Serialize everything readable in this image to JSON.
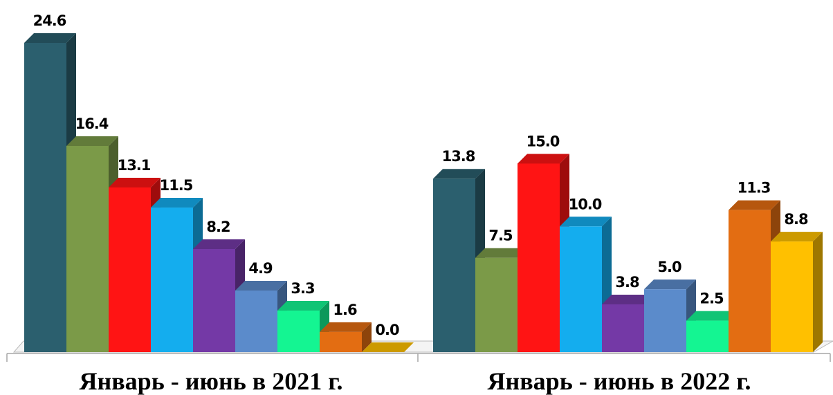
{
  "chart_data": {
    "type": "bar",
    "style": "3d-clustered",
    "categories": [
      "Январь - июнь в 2021 г.",
      "Январь - июнь в 2022 г."
    ],
    "series_colors": [
      "#2B5F6E",
      "#7B9A48",
      "#FF1414",
      "#14ADEE",
      "#7439A6",
      "#5B8BCB",
      "#14F592",
      "#E36D12",
      "#FFC000"
    ],
    "groups": [
      {
        "category": "Январь - июнь в 2021 г.",
        "values": [
          24.6,
          16.4,
          13.1,
          11.5,
          8.2,
          4.9,
          3.3,
          1.6,
          0.0
        ],
        "labels": [
          "24.6",
          "16.4",
          "13.1",
          "11.5",
          "8.2",
          "4.9",
          "3.3",
          "1.6",
          "0.0"
        ]
      },
      {
        "category": "Январь - июнь в 2022 г.",
        "values": [
          13.8,
          7.5,
          15.0,
          10.0,
          3.8,
          5.0,
          2.5,
          11.3,
          8.8
        ],
        "labels": [
          "13.8",
          "7.5",
          "15.0",
          "10.0",
          "3.8",
          "5.0",
          "2.5",
          "11.3",
          "8.8"
        ]
      }
    ],
    "ylim": [
      0,
      25
    ],
    "grid": false,
    "legend": "none"
  }
}
